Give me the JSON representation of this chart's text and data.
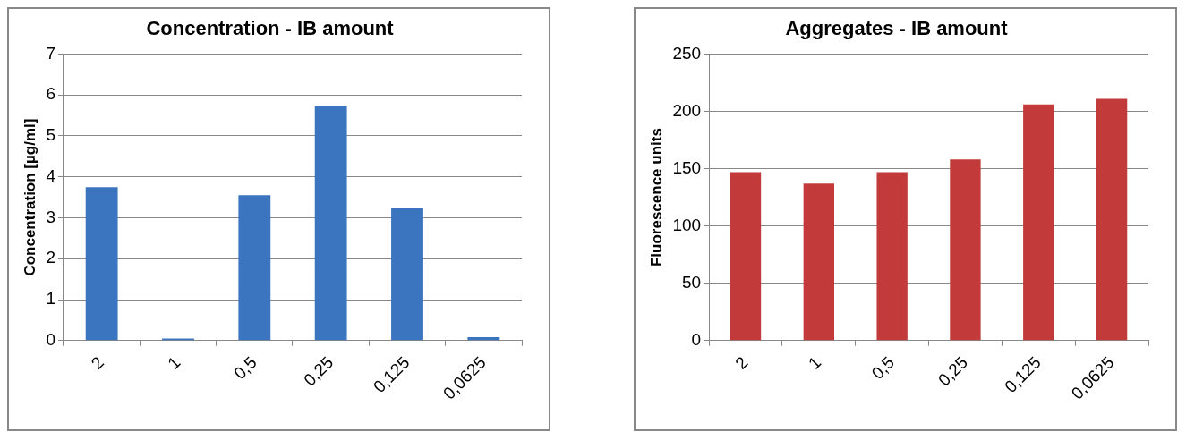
{
  "chart_data": [
    {
      "type": "bar",
      "title": "Concentration - IB amount",
      "ylabel": "Concentration [µg/ml]",
      "categories": [
        "2",
        "1",
        "0,5",
        "0,25",
        "0,125",
        "0,0625"
      ],
      "values": [
        3.75,
        0.05,
        3.55,
        5.73,
        3.24,
        0.08
      ],
      "color": "#3b74bf",
      "ylim": [
        0,
        7
      ],
      "yticks": [
        0,
        1,
        2,
        3,
        4,
        5,
        6,
        7
      ],
      "grid": "y",
      "legend": false
    },
    {
      "type": "bar",
      "title": "Aggregates - IB amount",
      "ylabel": "Fluorescence units",
      "categories": [
        "2",
        "1",
        "0,5",
        "0,25",
        "0,125",
        "0,0625"
      ],
      "values": [
        147,
        137,
        147,
        158,
        206,
        211
      ],
      "color": "#c23b3a",
      "ylim": [
        0,
        250
      ],
      "yticks": [
        0,
        50,
        100,
        150,
        200,
        250
      ],
      "grid": "y",
      "legend": false
    }
  ]
}
